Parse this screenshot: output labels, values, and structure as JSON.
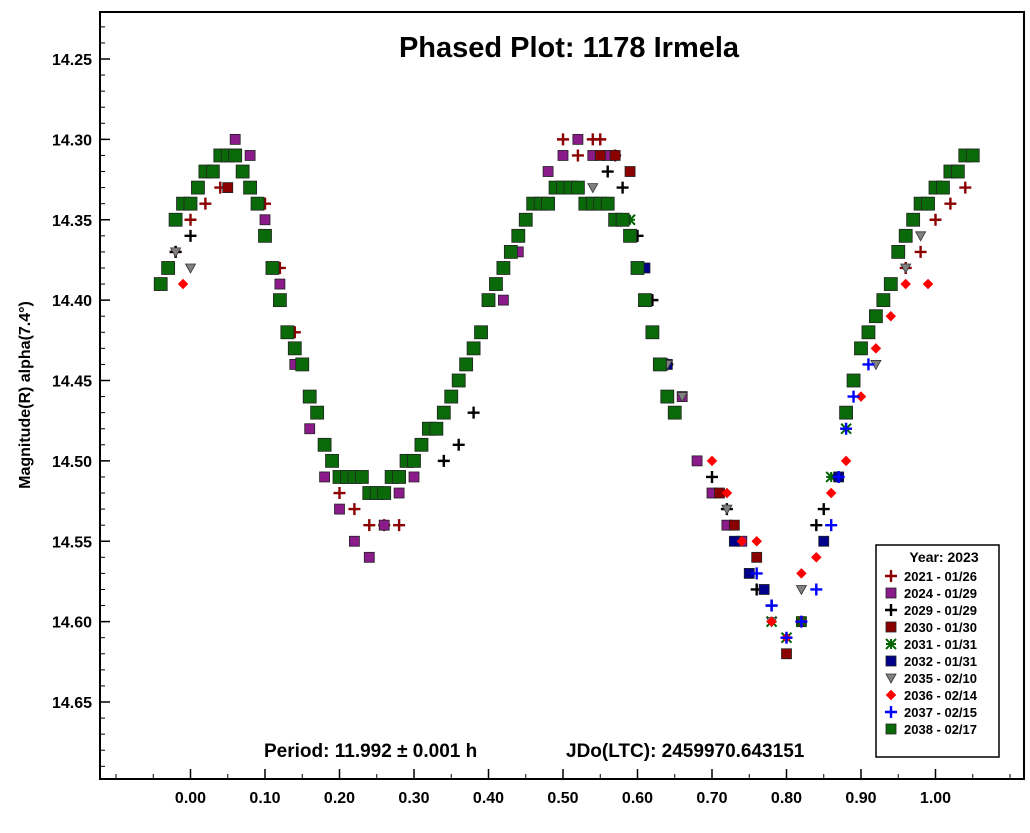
{
  "chart_data": {
    "type": "scatter",
    "title": "Phased Plot: 1178 Irmela",
    "xlabel": "",
    "ylabel": "Magnitude(R) alpha(7.4°)",
    "xlim": [
      -0.12,
      1.12
    ],
    "ylim": [
      14.22,
      14.7
    ],
    "y_inverted": true,
    "x_ticks": [
      0.0,
      0.1,
      0.2,
      0.3,
      0.4,
      0.5,
      0.6,
      0.7,
      0.8,
      0.9,
      1.0
    ],
    "x_tick_labels": [
      "0.00",
      "0.10",
      "0.20",
      "0.30",
      "0.40",
      "0.50",
      "0.60",
      "0.70",
      "0.80",
      "0.90",
      "1.00"
    ],
    "y_ticks": [
      14.25,
      14.3,
      14.35,
      14.4,
      14.45,
      14.5,
      14.55,
      14.6,
      14.65
    ],
    "y_tick_labels": [
      "14.25",
      "14.30",
      "14.35",
      "14.40",
      "14.45",
      "14.50",
      "14.55",
      "14.60",
      "14.65"
    ],
    "grid": false,
    "legend_placement": "bottom-right",
    "annotation_period": "Period: 11.992 ± 0.001 h",
    "annotation_epoch": "JDo(LTC): 2459970.643151",
    "legend_title": "Year: 2023",
    "series": [
      {
        "name": "2021 - 01/26",
        "marker": "plus",
        "color": "#8b0000",
        "x": [
          -0.04,
          -0.02,
          0.0,
          0.02,
          0.04,
          0.07,
          0.1,
          0.12,
          0.14,
          0.16,
          0.18,
          0.2,
          0.22,
          0.24,
          0.26,
          0.28,
          0.5,
          0.52,
          0.54,
          0.55,
          0.57,
          0.96,
          0.98,
          1.0,
          1.02,
          1.04
        ],
        "y": [
          14.39,
          14.37,
          14.35,
          14.34,
          14.33,
          14.32,
          14.34,
          14.38,
          14.42,
          14.46,
          14.49,
          14.52,
          14.53,
          14.54,
          14.54,
          14.54,
          14.3,
          14.31,
          14.3,
          14.3,
          14.31,
          14.38,
          14.37,
          14.35,
          14.34,
          14.33
        ]
      },
      {
        "name": "2024 - 01/29",
        "marker": "square",
        "color": "#8b1a8b",
        "x": [
          0.06,
          0.08,
          0.1,
          0.12,
          0.14,
          0.16,
          0.18,
          0.2,
          0.22,
          0.24,
          0.26,
          0.28,
          0.3,
          0.42,
          0.44,
          0.46,
          0.48,
          0.5,
          0.52,
          0.54,
          0.56,
          0.66,
          0.68,
          0.7,
          0.72,
          0.74
        ],
        "y": [
          14.3,
          14.31,
          14.35,
          14.39,
          14.44,
          14.48,
          14.51,
          14.53,
          14.55,
          14.56,
          14.54,
          14.52,
          14.51,
          14.4,
          14.37,
          14.34,
          14.32,
          14.31,
          14.3,
          14.31,
          14.31,
          14.46,
          14.5,
          14.52,
          14.54,
          14.55
        ]
      },
      {
        "name": "2029 - 01/29",
        "marker": "plus",
        "color": "#000000",
        "x": [
          -0.02,
          0.0,
          0.34,
          0.36,
          0.38,
          0.56,
          0.58,
          0.6,
          0.62,
          0.64,
          0.7,
          0.72,
          0.76,
          0.78,
          0.84,
          0.85
        ],
        "y": [
          14.37,
          14.36,
          14.5,
          14.49,
          14.47,
          14.32,
          14.33,
          14.36,
          14.4,
          14.44,
          14.51,
          14.53,
          14.58,
          14.59,
          14.54,
          14.53
        ]
      },
      {
        "name": "2030 - 01/30",
        "marker": "square",
        "color": "#8b0000",
        "x": [
          0.05,
          0.55,
          0.57,
          0.59,
          0.71,
          0.73,
          0.76,
          0.8,
          0.82
        ],
        "y": [
          14.33,
          14.31,
          14.31,
          14.32,
          14.52,
          14.54,
          14.56,
          14.62,
          14.6
        ]
      },
      {
        "name": "2031 - 01/31",
        "marker": "asterisk",
        "color": "#006400",
        "x": [
          0.59,
          0.78,
          0.8,
          0.82,
          0.86,
          0.88
        ],
        "y": [
          14.35,
          14.6,
          14.61,
          14.6,
          14.51,
          14.48
        ]
      },
      {
        "name": "2032 - 01/31",
        "marker": "square",
        "color": "#00008b",
        "x": [
          0.61,
          0.64,
          0.73,
          0.75,
          0.77,
          0.85,
          0.87
        ],
        "y": [
          14.38,
          14.44,
          14.55,
          14.57,
          14.58,
          14.55,
          14.51
        ]
      },
      {
        "name": "2035 - 02/10",
        "marker": "triangle-down",
        "color": "#808080",
        "x": [
          -0.02,
          0.0,
          0.54,
          0.64,
          0.66,
          0.72,
          0.78,
          0.82,
          0.88,
          0.92,
          0.96,
          0.98
        ],
        "y": [
          14.37,
          14.38,
          14.33,
          14.44,
          14.46,
          14.53,
          14.6,
          14.58,
          14.47,
          14.44,
          14.38,
          14.36
        ]
      },
      {
        "name": "2036 - 02/14",
        "marker": "diamond",
        "color": "#ff0000",
        "x": [
          -0.04,
          -0.01,
          0.7,
          0.72,
          0.74,
          0.76,
          0.78,
          0.8,
          0.82,
          0.84,
          0.86,
          0.88,
          0.9,
          0.92,
          0.94,
          0.96,
          0.99
        ],
        "y": [
          14.39,
          14.39,
          14.5,
          14.52,
          14.55,
          14.55,
          14.6,
          14.61,
          14.57,
          14.56,
          14.52,
          14.5,
          14.46,
          14.43,
          14.41,
          14.39,
          14.39
        ]
      },
      {
        "name": "2037 - 02/15",
        "marker": "plus",
        "color": "#0000ff",
        "x": [
          0.76,
          0.78,
          0.8,
          0.82,
          0.84,
          0.86,
          0.87,
          0.88,
          0.89,
          0.91
        ],
        "y": [
          14.57,
          14.59,
          14.61,
          14.6,
          14.58,
          14.54,
          14.51,
          14.48,
          14.46,
          14.44
        ]
      },
      {
        "name": "2038 - 02/17",
        "marker": "square",
        "color": "#0a6a0a",
        "x": [
          -0.04,
          -0.03,
          -0.02,
          -0.01,
          0.0,
          0.01,
          0.02,
          0.03,
          0.04,
          0.05,
          0.06,
          0.07,
          0.08,
          0.09,
          0.1,
          0.11,
          0.12,
          0.13,
          0.14,
          0.15,
          0.16,
          0.17,
          0.18,
          0.19,
          0.2,
          0.21,
          0.22,
          0.23,
          0.24,
          0.25,
          0.26,
          0.27,
          0.28,
          0.29,
          0.3,
          0.31,
          0.32,
          0.33,
          0.34,
          0.35,
          0.36,
          0.37,
          0.38,
          0.39,
          0.4,
          0.41,
          0.42,
          0.43,
          0.44,
          0.45,
          0.46,
          0.47,
          0.48,
          0.49,
          0.5,
          0.51,
          0.52,
          0.53,
          0.54,
          0.55,
          0.56,
          0.57,
          0.58,
          0.59,
          0.6,
          0.61,
          0.62,
          0.63,
          0.64,
          0.65,
          0.88,
          0.89,
          0.9,
          0.91,
          0.92,
          0.93,
          0.94,
          0.95,
          0.96,
          0.97,
          0.98,
          0.99,
          1.0,
          1.01,
          1.02,
          1.03,
          1.04,
          1.05
        ],
        "y": [
          14.39,
          14.38,
          14.35,
          14.34,
          14.34,
          14.33,
          14.32,
          14.32,
          14.31,
          14.31,
          14.31,
          14.32,
          14.33,
          14.34,
          14.36,
          14.38,
          14.4,
          14.42,
          14.43,
          14.44,
          14.46,
          14.47,
          14.49,
          14.5,
          14.51,
          14.51,
          14.51,
          14.51,
          14.52,
          14.52,
          14.52,
          14.51,
          14.51,
          14.5,
          14.5,
          14.49,
          14.48,
          14.48,
          14.47,
          14.46,
          14.45,
          14.44,
          14.43,
          14.42,
          14.4,
          14.39,
          14.38,
          14.37,
          14.36,
          14.35,
          14.34,
          14.34,
          14.34,
          14.33,
          14.33,
          14.33,
          14.33,
          14.34,
          14.34,
          14.34,
          14.34,
          14.35,
          14.35,
          14.36,
          14.38,
          14.4,
          14.42,
          14.44,
          14.46,
          14.47,
          14.47,
          14.45,
          14.43,
          14.42,
          14.41,
          14.4,
          14.39,
          14.37,
          14.36,
          14.35,
          14.34,
          14.34,
          14.33,
          14.33,
          14.32,
          14.32,
          14.31,
          14.31
        ]
      }
    ]
  }
}
